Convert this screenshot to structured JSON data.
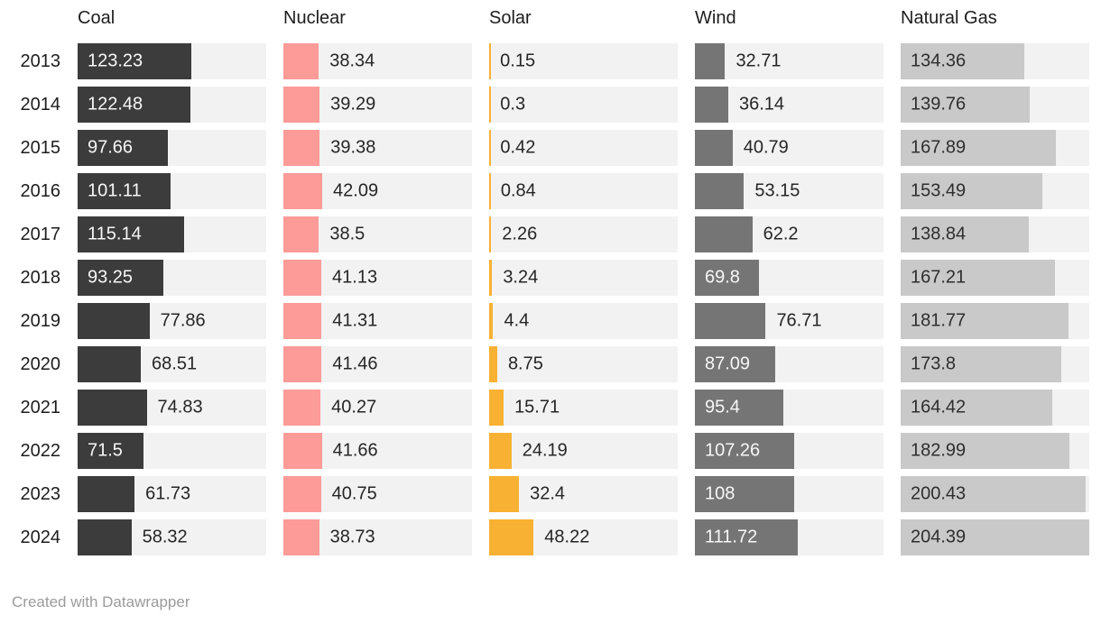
{
  "footer": {
    "text": "Created with Datawrapper"
  },
  "colors": {
    "background": "#ffffff",
    "track": "#f2f2f2",
    "value_label": "#262626",
    "header_label": "#1d1d1d",
    "year_label": "#1d1d1d",
    "footer_text": "#9b9b9b"
  },
  "chart_data": {
    "type": "bar",
    "orientation": "horizontal",
    "layout": "small-multiples-columns",
    "title": "",
    "grid": false,
    "xlim": [
      0,
      204.39
    ],
    "categories": [
      "2013",
      "2014",
      "2015",
      "2016",
      "2017",
      "2018",
      "2019",
      "2020",
      "2021",
      "2022",
      "2023",
      "2024"
    ],
    "series": [
      {
        "name": "Coal",
        "color": "#3c3c3c",
        "label_inside_color": "#f7f7f7",
        "values": [
          123.23,
          122.48,
          97.66,
          101.11,
          115.14,
          93.25,
          77.86,
          68.51,
          74.83,
          71.5,
          61.73,
          58.32
        ],
        "label_inside": [
          true,
          true,
          true,
          true,
          true,
          true,
          false,
          false,
          false,
          true,
          false,
          false
        ]
      },
      {
        "name": "Nuclear",
        "color": "#fc9b98",
        "label_inside_color": "#262626",
        "values": [
          38.34,
          39.29,
          39.38,
          42.09,
          38.5,
          41.13,
          41.31,
          41.46,
          40.27,
          41.66,
          40.75,
          38.73
        ],
        "label_inside": [
          false,
          false,
          false,
          false,
          false,
          false,
          false,
          false,
          false,
          false,
          false,
          false
        ]
      },
      {
        "name": "Solar",
        "color": "#f8b133",
        "label_inside_color": "#262626",
        "values": [
          0.15,
          0.3,
          0.42,
          0.84,
          2.26,
          3.24,
          4.4,
          8.75,
          15.71,
          24.19,
          32.4,
          48.22
        ],
        "label_inside": [
          false,
          false,
          false,
          false,
          false,
          false,
          false,
          false,
          false,
          false,
          false,
          false
        ]
      },
      {
        "name": "Wind",
        "color": "#757575",
        "label_inside_color": "#f7f7f7",
        "values": [
          32.71,
          36.14,
          40.79,
          53.15,
          62.2,
          69.8,
          76.71,
          87.09,
          95.4,
          107.26,
          108,
          111.72
        ],
        "label_inside": [
          false,
          false,
          false,
          false,
          false,
          true,
          false,
          true,
          true,
          true,
          true,
          true
        ]
      },
      {
        "name": "Natural Gas",
        "color": "#c9c9c9",
        "label_inside_color": "#2e2e2e",
        "values": [
          134.36,
          139.76,
          167.89,
          153.49,
          138.84,
          167.21,
          181.77,
          173.8,
          164.42,
          182.99,
          200.43,
          204.39
        ],
        "label_inside": [
          true,
          true,
          true,
          true,
          true,
          true,
          true,
          true,
          true,
          true,
          true,
          true
        ]
      }
    ]
  }
}
